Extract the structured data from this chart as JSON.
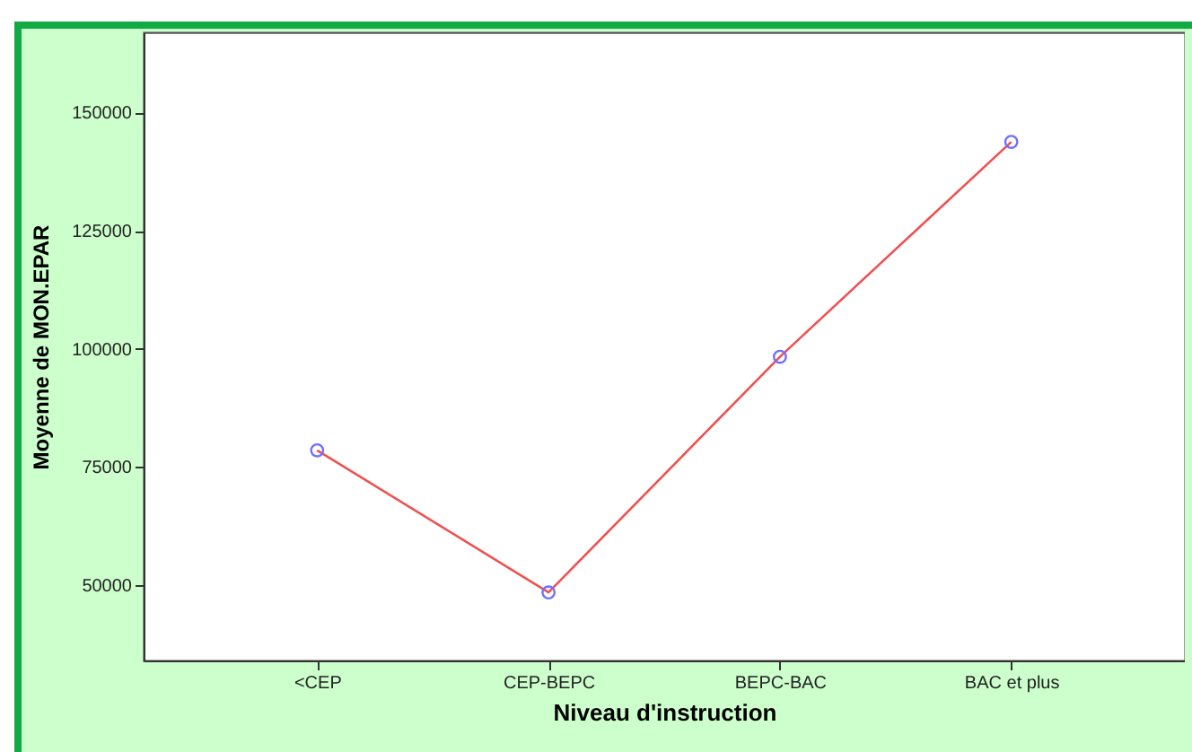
{
  "chart_data": {
    "type": "line",
    "xlabel": "Niveau d'instruction",
    "ylabel": "Moyenne de MON.EPAR",
    "categories": [
      "<CEP",
      "CEP-BEPC",
      "BEPC-BAC",
      "BAC et plus"
    ],
    "series": [
      {
        "color": "#f05050",
        "values": [
          78500,
          48400,
          98300,
          143800
        ]
      }
    ],
    "marker": "circle",
    "ylim": [
      34000,
      167000
    ],
    "yticks": [
      50000,
      75000,
      100000,
      125000,
      150000
    ],
    "grid": false
  }
}
